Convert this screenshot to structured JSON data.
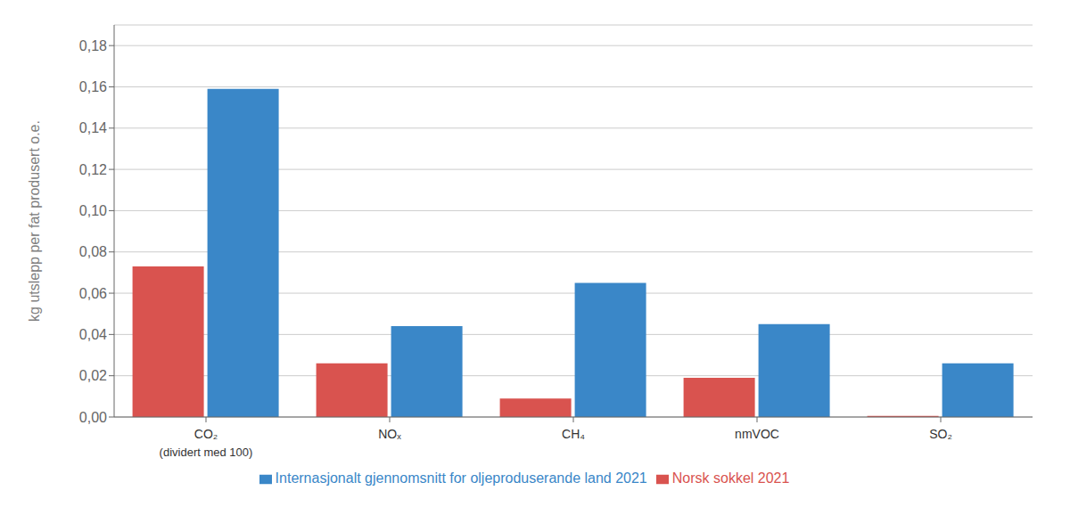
{
  "chart_data": {
    "type": "bar",
    "categories": [
      "CO₂",
      "NOₓ",
      "CH₄",
      "nmVOC",
      "SO₂"
    ],
    "series": [
      {
        "name": "Norsk sokkel 2021",
        "color": "#D9534F",
        "values": [
          0.073,
          0.026,
          0.009,
          0.019,
          0.0005
        ]
      },
      {
        "name": "Internasjonalt gjennomsnitt for oljeproduserande land 2021",
        "color": "#3A87C8",
        "values": [
          0.159,
          0.044,
          0.065,
          0.045,
          0.026
        ]
      }
    ],
    "ylabel": "kg utslepp per fat produsert o.e.",
    "ylim": [
      0,
      0.19
    ],
    "yticks": [
      {
        "value": 0.0,
        "label": "0,00"
      },
      {
        "value": 0.02,
        "label": "0,02"
      },
      {
        "value": 0.04,
        "label": "0,04"
      },
      {
        "value": 0.06,
        "label": "0,06"
      },
      {
        "value": 0.08,
        "label": "0,08"
      },
      {
        "value": 0.1,
        "label": "0,10"
      },
      {
        "value": 0.12,
        "label": "0,12"
      },
      {
        "value": 0.14,
        "label": "0,14"
      },
      {
        "value": 0.16,
        "label": "0,16"
      },
      {
        "value": 0.18,
        "label": "0,18"
      }
    ],
    "annotations": [
      {
        "text": "(dividert med 100)",
        "x": "CO₂"
      }
    ],
    "grid": true,
    "legend": "bottom"
  }
}
